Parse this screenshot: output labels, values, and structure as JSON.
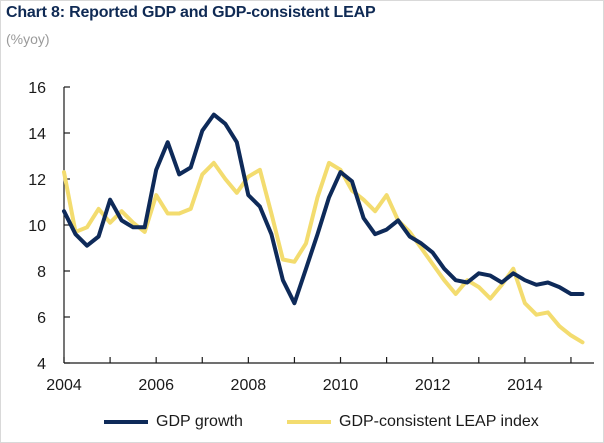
{
  "title": "Chart 8: Reported GDP and GDP-consistent LEAP",
  "subtitle": "(%yoy)",
  "colors": {
    "gdp": "#0e2a59",
    "leap": "#f3dc6f",
    "axis": "#1a1a1a"
  },
  "chart_data": {
    "type": "line",
    "title": "Chart 8: Reported GDP and GDP-consistent LEAP",
    "subtitle": "(%yoy)",
    "xlabel": "",
    "ylabel": "(%yoy)",
    "xlim": [
      2004,
      2015.5
    ],
    "ylim": [
      4,
      16
    ],
    "x_ticks": [
      "2004",
      "2006",
      "2008",
      "2010",
      "2012",
      "2014"
    ],
    "y_ticks": [
      "4",
      "6",
      "8",
      "10",
      "12",
      "14",
      "16"
    ],
    "grid": false,
    "legend_position": "bottom",
    "series": [
      {
        "name": "GDP growth",
        "color": "#0e2a59",
        "x": [
          2004.0,
          2004.25,
          2004.5,
          2004.75,
          2005.0,
          2005.25,
          2005.5,
          2005.75,
          2006.0,
          2006.25,
          2006.5,
          2006.75,
          2007.0,
          2007.25,
          2007.5,
          2007.75,
          2008.0,
          2008.25,
          2008.5,
          2008.75,
          2009.0,
          2009.25,
          2009.5,
          2009.75,
          2010.0,
          2010.25,
          2010.5,
          2010.75,
          2011.0,
          2011.25,
          2011.5,
          2011.75,
          2012.0,
          2012.25,
          2012.5,
          2012.75,
          2013.0,
          2013.25,
          2013.5,
          2013.75,
          2014.0,
          2014.25,
          2014.5,
          2014.75,
          2015.0,
          2015.25
        ],
        "y": [
          10.6,
          9.6,
          9.1,
          9.5,
          11.1,
          10.2,
          9.9,
          9.9,
          12.4,
          13.6,
          12.2,
          12.5,
          14.1,
          14.8,
          14.4,
          13.6,
          11.3,
          10.8,
          9.6,
          7.6,
          6.6,
          8.1,
          9.6,
          11.2,
          12.3,
          11.9,
          10.3,
          9.6,
          9.8,
          10.2,
          9.5,
          9.2,
          8.8,
          8.1,
          7.6,
          7.5,
          7.9,
          7.8,
          7.5,
          7.9,
          7.6,
          7.4,
          7.5,
          7.3,
          7.0,
          7.0
        ]
      },
      {
        "name": "GDP-consistent LEAP index",
        "color": "#f3dc6f",
        "x": [
          2004.0,
          2004.25,
          2004.5,
          2004.75,
          2005.0,
          2005.25,
          2005.5,
          2005.75,
          2006.0,
          2006.25,
          2006.5,
          2006.75,
          2007.0,
          2007.25,
          2007.5,
          2007.75,
          2008.0,
          2008.25,
          2008.5,
          2008.75,
          2009.0,
          2009.25,
          2009.5,
          2009.75,
          2010.0,
          2010.25,
          2010.5,
          2010.75,
          2011.0,
          2011.25,
          2011.5,
          2011.75,
          2012.0,
          2012.25,
          2012.5,
          2012.75,
          2013.0,
          2013.25,
          2013.5,
          2013.75,
          2014.0,
          2014.25,
          2014.5,
          2014.75,
          2015.0,
          2015.25
        ],
        "y": [
          12.3,
          9.7,
          9.9,
          10.7,
          10.1,
          10.6,
          10.1,
          9.7,
          11.3,
          10.5,
          10.5,
          10.7,
          12.2,
          12.7,
          12.0,
          11.4,
          12.1,
          12.4,
          10.5,
          8.5,
          8.4,
          9.2,
          11.2,
          12.7,
          12.4,
          11.5,
          11.1,
          10.6,
          11.3,
          10.2,
          9.7,
          9.0,
          8.3,
          7.6,
          7.0,
          7.6,
          7.3,
          6.8,
          7.4,
          8.1,
          6.6,
          6.1,
          6.2,
          5.6,
          5.2,
          4.9
        ]
      }
    ]
  }
}
